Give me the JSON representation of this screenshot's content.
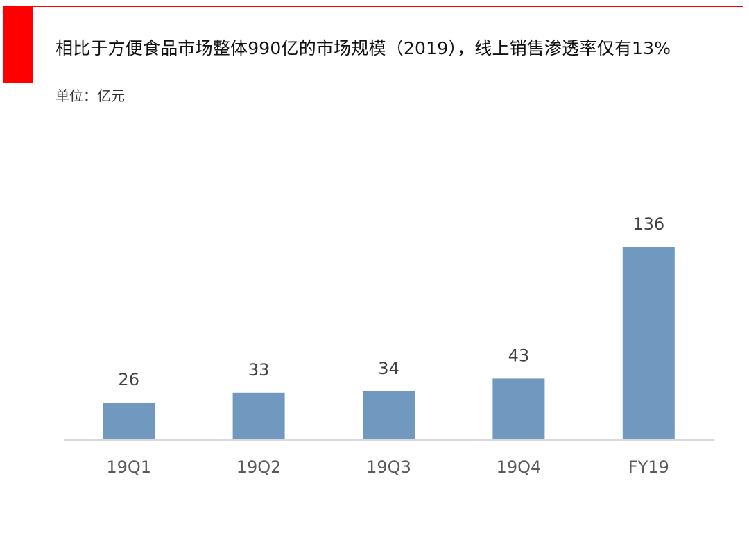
{
  "header": {
    "title": "相比于方便食品市场整体990亿的市场规模（2019），线上销售渗透率仅有13%",
    "unit": "单位：亿元"
  },
  "colors": {
    "accent": "#ff0000",
    "bar": "#7199bf",
    "axis": "#d9d9d9"
  },
  "chart_data": {
    "type": "bar",
    "title": "相比于方便食品市场整体990亿的市场规模（2019），线上销售渗透率仅有13%",
    "xlabel": "",
    "ylabel": "",
    "unit": "单位：亿元",
    "categories": [
      "19Q1",
      "19Q2",
      "19Q3",
      "19Q4",
      "FY19"
    ],
    "values": [
      26,
      33,
      34,
      43,
      136
    ],
    "data_labels": [
      "26",
      "33",
      "34",
      "43",
      "136"
    ],
    "ylim": [
      0,
      136
    ],
    "grid": false,
    "legend": "none"
  }
}
